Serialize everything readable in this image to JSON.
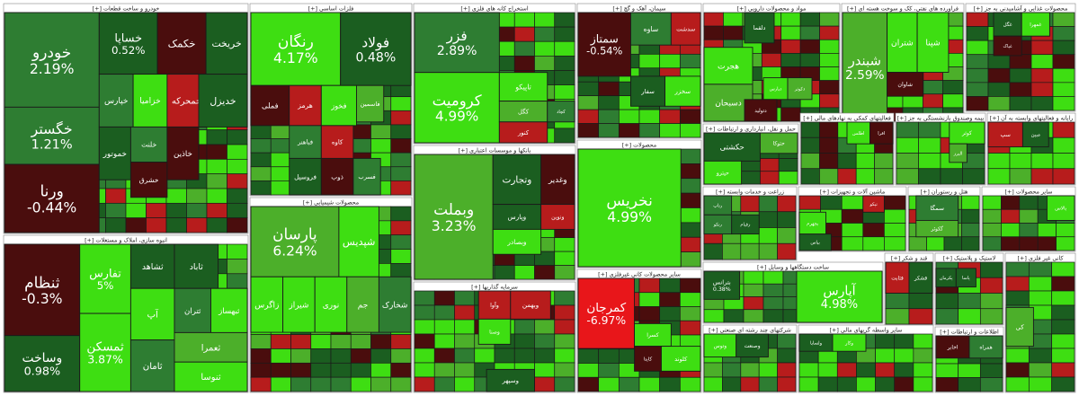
{
  "chart_data": {
    "type": "treemap",
    "title": "",
    "colors": {
      "dark_red": "#4a0d0d",
      "red": "#e8161a",
      "light_red": "#b71c1c",
      "dark_green": "#1b5e20",
      "green": "#2e7d32",
      "mid_green": "#4caf2a",
      "bright_green": "#3ede12",
      "header_bg": "#ffffff",
      "header_text": "#222222"
    },
    "sectors": [
      {
        "name": "خودرو و ساخت قطعات [+]",
        "stocks": [
          {
            "name": "خودرو",
            "change": "2.19%"
          },
          {
            "name": "خساپا",
            "change": "0.52%"
          },
          {
            "name": "خکمک",
            "change": ""
          },
          {
            "name": "خگستر",
            "change": "1.21%"
          },
          {
            "name": "ورنا",
            "change": "-0.44%"
          },
          {
            "name": "خپارس",
            "change": ""
          },
          {
            "name": "خزامیا",
            "change": ""
          },
          {
            "name": "خمحرکه",
            "change": ""
          },
          {
            "name": "خریخت",
            "change": ""
          },
          {
            "name": "خموتور",
            "change": ""
          },
          {
            "name": "خلنت",
            "change": ""
          },
          {
            "name": "خشرق",
            "change": ""
          },
          {
            "name": "خاذین",
            "change": ""
          },
          {
            "name": "خدیزل",
            "change": ""
          }
        ]
      },
      {
        "name": "انبوه سازی، املاک و مستغلات [+]",
        "stocks": [
          {
            "name": "ثنظام",
            "change": "-0.3%"
          },
          {
            "name": "تفارس",
            "change": "5%"
          },
          {
            "name": "وساخت",
            "change": "0.98%"
          },
          {
            "name": "ثمسکن",
            "change": "3.87%"
          },
          {
            "name": "ثشاهد",
            "change": ""
          },
          {
            "name": "ثاباد",
            "change": ""
          },
          {
            "name": "آپ",
            "change": ""
          },
          {
            "name": "ثتران",
            "change": ""
          },
          {
            "name": "ثبهساز",
            "change": ""
          },
          {
            "name": "ثامان",
            "change": ""
          },
          {
            "name": "ثعمرا",
            "change": ""
          },
          {
            "name": "ثنوسا",
            "change": ""
          }
        ]
      },
      {
        "name": "فلزات اساسی [+]",
        "stocks": [
          {
            "name": "رنگان",
            "change": "4.17%"
          },
          {
            "name": "فولاد",
            "change": "0.48%"
          },
          {
            "name": "فملی",
            "change": ""
          },
          {
            "name": "هرمز",
            "change": ""
          },
          {
            "name": "فخوز",
            "change": ""
          },
          {
            "name": "فاسمین",
            "change": ""
          },
          {
            "name": "فباهنر",
            "change": ""
          },
          {
            "name": "کاوه",
            "change": ""
          },
          {
            "name": "فروسیل",
            "change": ""
          },
          {
            "name": "ذوب",
            "change": ""
          },
          {
            "name": "فسرب",
            "change": ""
          }
        ]
      },
      {
        "name": "محصولات شیمیایی [+]",
        "stocks": [
          {
            "name": "پارسان",
            "change": "6.24%"
          },
          {
            "name": "شپدیس",
            "change": ""
          },
          {
            "name": "زاگرس",
            "change": ""
          },
          {
            "name": "شیراز",
            "change": ""
          },
          {
            "name": "نوری",
            "change": ""
          },
          {
            "name": "جم",
            "change": ""
          },
          {
            "name": "شخارک",
            "change": ""
          }
        ]
      },
      {
        "name": "استخراج کانه های فلزی [+]",
        "stocks": [
          {
            "name": "فزر",
            "change": "2.89%"
          },
          {
            "name": "کروميت",
            "change": "4.99%"
          },
          {
            "name": "تاپیکو",
            "change": ""
          },
          {
            "name": "کگل",
            "change": ""
          },
          {
            "name": "کچاد",
            "change": ""
          },
          {
            "name": "کنور",
            "change": ""
          }
        ]
      },
      {
        "name": "بانکها و موسسات اعتباری [+]",
        "stocks": [
          {
            "name": "وبملت",
            "change": "3.23%"
          },
          {
            "name": "وتجارت",
            "change": ""
          },
          {
            "name": "وپارس",
            "change": ""
          },
          {
            "name": "وبصادر",
            "change": ""
          },
          {
            "name": "وغدیر",
            "change": ""
          },
          {
            "name": "ونوین",
            "change": ""
          }
        ]
      },
      {
        "name": "سرمایه گذاریها [+]",
        "stocks": [
          {
            "name": "وآوا",
            "change": ""
          },
          {
            "name": "وبهمن",
            "change": ""
          },
          {
            "name": "وصنا",
            "change": ""
          },
          {
            "name": "وسپهر",
            "change": ""
          }
        ]
      },
      {
        "name": "سیمان، آهک و گچ [+]",
        "stocks": [
          {
            "name": "سمتاز",
            "change": "-0.54%"
          },
          {
            "name": "ساوه",
            "change": ""
          },
          {
            "name": "سدشت",
            "change": ""
          },
          {
            "name": "سفار",
            "change": ""
          },
          {
            "name": "سخزر",
            "change": ""
          }
        ]
      },
      {
        "name": "محصولات [+]",
        "stocks": [
          {
            "name": "نخریس",
            "change": "4.99%"
          }
        ]
      },
      {
        "name": "سایر محصولات کانی غیرفلزی [+]",
        "stocks": [
          {
            "name": "کمرجان",
            "change": "-6.97%"
          },
          {
            "name": "کسرا",
            "change": ""
          },
          {
            "name": "کایتا",
            "change": ""
          },
          {
            "name": "کلوند",
            "change": ""
          }
        ]
      },
      {
        "name": "مواد و محصولات دارویی [+]",
        "stocks": [
          {
            "name": "دلقما",
            "change": ""
          },
          {
            "name": "هجرت",
            "change": ""
          },
          {
            "name": "دسبحان",
            "change": ""
          },
          {
            "name": "دپارس",
            "change": ""
          },
          {
            "name": "دتولید",
            "change": ""
          },
          {
            "name": "دکوثر",
            "change": ""
          }
        ]
      },
      {
        "name": "فراورده های نفتی، کک و سوخت هسته ای [+]",
        "stocks": [
          {
            "name": "شبندر",
            "change": "2.59%"
          },
          {
            "name": "شتران",
            "change": ""
          },
          {
            "name": "شپنا",
            "change": ""
          },
          {
            "name": "شاوان",
            "change": ""
          }
        ]
      },
      {
        "name": "محصولات غذایی و آشامیدنی به جز [+]",
        "stocks": [
          {
            "name": "غگل",
            "change": ""
          },
          {
            "name": "غمهرا",
            "change": ""
          },
          {
            "name": "غپاک",
            "change": ""
          }
        ]
      },
      {
        "name": "حمل و نقل، انبارداری و ارتباطات [+]",
        "stocks": [
          {
            "name": "حکشتی",
            "change": ""
          },
          {
            "name": "حتوکا",
            "change": ""
          },
          {
            "name": "حپترو",
            "change": ""
          }
        ]
      },
      {
        "name": "فعالیتهای کمکی به نهادهای مالی [+]",
        "stocks": [
          {
            "name": "اطلس",
            "change": ""
          },
          {
            "name": "افرا",
            "change": ""
          }
        ]
      },
      {
        "name": "بیمه وصندوق بازنشستگی به جز [+]",
        "stocks": [
          {
            "name": "کوثر",
            "change": ""
          },
          {
            "name": "البرز",
            "change": ""
          }
        ]
      },
      {
        "name": "رایانه و فعالیتهای وابسته به آن [+]",
        "stocks": [
          {
            "name": "سپ",
            "change": ""
          },
          {
            "name": "مبین",
            "change": ""
          }
        ]
      },
      {
        "name": "ماشین آلات و تجهیزات [+]",
        "stocks": [
          {
            "name": "تپکو",
            "change": ""
          },
          {
            "name": "بجهرم",
            "change": ""
          },
          {
            "name": "بپاس",
            "change": ""
          }
        ]
      },
      {
        "name": "هتل و رستوران [+]",
        "stocks": [
          {
            "name": "سمگا",
            "change": ""
          },
          {
            "name": "گکوثر",
            "change": ""
          }
        ]
      },
      {
        "name": "سایر محصولات [+]",
        "stocks": [
          {
            "name": "بالاس",
            "change": ""
          }
        ]
      },
      {
        "name": "زراعت و خدمات وابسته [+]",
        "stocks": [
          {
            "name": "رتاپ",
            "change": ""
          },
          {
            "name": "زقیام",
            "change": ""
          },
          {
            "name": "رتکو",
            "change": ""
          }
        ]
      },
      {
        "name": "ساخت دستگاهها و وسایل [+]",
        "stocks": [
          {
            "name": "آپارس",
            "change": "4.98%"
          },
          {
            "name": "بترانس",
            "change": "0.38%"
          }
        ]
      },
      {
        "name": "لاستیک و پلاستیک [+]",
        "stocks": [
          {
            "name": "پاسا",
            "change": ""
          },
          {
            "name": "پکرمان",
            "change": ""
          }
        ]
      },
      {
        "name": "قند و شکر [+]",
        "stocks": [
          {
            "name": "قثابت",
            "change": ""
          },
          {
            "name": "قشکر",
            "change": ""
          }
        ]
      },
      {
        "name": "شرکتهای چند رشته ای صنعتی [+]",
        "stocks": [
          {
            "name": "وتوس",
            "change": ""
          },
          {
            "name": "وصنعت",
            "change": ""
          }
        ]
      },
      {
        "name": "سایر واسطه گریهای مالی [+]",
        "stocks": [
          {
            "name": "ولساپا",
            "change": ""
          },
          {
            "name": "وکار",
            "change": ""
          }
        ]
      },
      {
        "name": "اطلاعات و ارتباطات [+]",
        "stocks": [
          {
            "name": "اخابر",
            "change": ""
          },
          {
            "name": "همراه",
            "change": ""
          }
        ]
      },
      {
        "name": "کانی غیر فلزی [+]",
        "stocks": [
          {
            "name": "کی",
            "change": ""
          }
        ]
      }
    ]
  }
}
